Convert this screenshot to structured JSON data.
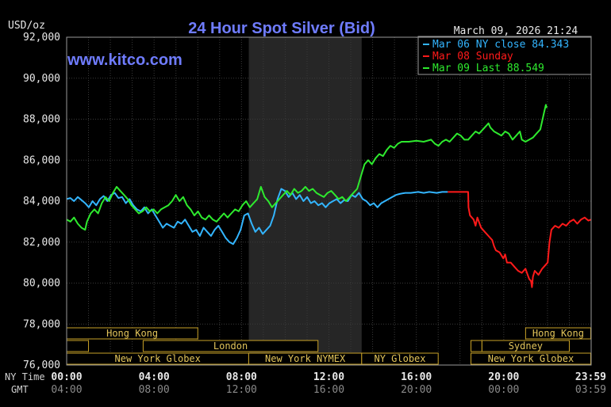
{
  "chart_data": {
    "type": "line",
    "title": "24 Hour Spot Silver (Bid)",
    "watermark": "www.kitco.com",
    "timestamp": "March 09, 2026 21:24",
    "ylabel": "USD/oz",
    "ylim": [
      76000,
      92000
    ],
    "y_ticks": [
      "76,000",
      "78,000",
      "80,000",
      "82,000",
      "84,000",
      "86,000",
      "88,000",
      "90,000",
      "92,000"
    ],
    "x_axes": [
      {
        "label": "NY Time",
        "ticks": [
          "00:00",
          "04:00",
          "08:00",
          "12:00",
          "16:00",
          "20:00",
          "23:59"
        ]
      },
      {
        "label": "GMT",
        "ticks": [
          "04:00",
          "08:00",
          "12:00",
          "16:00",
          "20:00",
          "00:00",
          "03:59"
        ]
      }
    ],
    "shaded_session": {
      "start": "08:20",
      "end": "13:30"
    },
    "legend": [
      {
        "text": "Mar 06 NY close 84.343",
        "color": "#33b5ff"
      },
      {
        "text": "Mar 08 Sunday",
        "color": "#ff1a1a"
      },
      {
        "text": "Mar 09 Last 88.549",
        "color": "#2eea2e"
      }
    ],
    "sessions": [
      {
        "label": "Hong Kong",
        "start": 0.0,
        "end": 6.0,
        "row": 0
      },
      {
        "label": "Hong Kong",
        "start": 21.0,
        "end": 23.98,
        "row": 0
      },
      {
        "label": "",
        "start": 0.0,
        "end": 1.0,
        "row": 1
      },
      {
        "label": "London",
        "start": 3.5,
        "end": 11.5,
        "row": 1
      },
      {
        "label": "Sydney",
        "start": 19.0,
        "end": 23.0,
        "row": 1
      },
      {
        "label": "",
        "start": 18.5,
        "end": 19.0,
        "row": 1
      },
      {
        "label": "New York Globex",
        "start": 0.0,
        "end": 8.33,
        "row": 2
      },
      {
        "label": "New York NYMEX",
        "start": 8.33,
        "end": 13.5,
        "row": 2
      },
      {
        "label": "NY Globex",
        "start": 13.5,
        "end": 17.0,
        "row": 2
      },
      {
        "label": "New York Globex",
        "start": 18.5,
        "end": 23.98,
        "row": 2
      }
    ],
    "series": [
      {
        "color": "#33b5ff",
        "points": [
          [
            0,
            84100
          ],
          [
            0.2,
            84150
          ],
          [
            0.4,
            84000
          ],
          [
            0.6,
            84200
          ],
          [
            0.8,
            84050
          ],
          [
            1,
            83900
          ],
          [
            1.2,
            83700
          ],
          [
            1.4,
            84000
          ],
          [
            1.6,
            83800
          ],
          [
            1.8,
            84100
          ],
          [
            2,
            84250
          ],
          [
            2.2,
            84000
          ],
          [
            2.4,
            84300
          ],
          [
            2.6,
            84400
          ],
          [
            2.8,
            84150
          ],
          [
            3,
            84200
          ],
          [
            3.2,
            83900
          ],
          [
            3.4,
            84100
          ],
          [
            3.6,
            83800
          ],
          [
            3.8,
            83600
          ],
          [
            4,
            83500
          ],
          [
            4.2,
            83700
          ],
          [
            4.4,
            83400
          ],
          [
            4.6,
            83600
          ],
          [
            4.8,
            83300
          ],
          [
            5,
            83000
          ],
          [
            5.2,
            82700
          ],
          [
            5.4,
            82900
          ],
          [
            5.6,
            82800
          ],
          [
            5.8,
            82700
          ],
          [
            6,
            83000
          ],
          [
            6.2,
            82900
          ],
          [
            6.4,
            83100
          ],
          [
            6.6,
            82800
          ],
          [
            6.8,
            82500
          ],
          [
            7,
            82600
          ],
          [
            7.2,
            82300
          ],
          [
            7.4,
            82700
          ],
          [
            7.6,
            82500
          ],
          [
            7.8,
            82300
          ],
          [
            8,
            82600
          ],
          [
            8.2,
            82800
          ],
          [
            8.4,
            82500
          ],
          [
            8.6,
            82200
          ],
          [
            8.8,
            82000
          ],
          [
            9,
            81900
          ],
          [
            9.2,
            82200
          ],
          [
            9.4,
            82600
          ],
          [
            9.6,
            83300
          ],
          [
            9.8,
            83400
          ],
          [
            10,
            82900
          ],
          [
            10.2,
            82500
          ],
          [
            10.4,
            82700
          ],
          [
            10.6,
            82400
          ],
          [
            10.8,
            82600
          ],
          [
            11,
            82800
          ],
          [
            11.2,
            83300
          ],
          [
            11.4,
            84100
          ],
          [
            11.6,
            84600
          ],
          [
            11.8,
            84500
          ],
          [
            12,
            84200
          ],
          [
            12.2,
            84400
          ],
          [
            12.4,
            84100
          ],
          [
            12.6,
            84300
          ],
          [
            12.8,
            84000
          ],
          [
            13,
            84200
          ],
          [
            13.2,
            83900
          ],
          [
            13.4,
            84000
          ],
          [
            13.6,
            83800
          ],
          [
            13.8,
            83900
          ],
          [
            14,
            83700
          ],
          [
            14.2,
            83900
          ],
          [
            14.4,
            84000
          ],
          [
            14.6,
            84100
          ],
          [
            14.8,
            83900
          ],
          [
            15,
            84050
          ],
          [
            15.2,
            84000
          ],
          [
            15.4,
            84300
          ],
          [
            15.6,
            84200
          ],
          [
            15.8,
            84400
          ],
          [
            16,
            84100
          ],
          [
            16.2,
            84000
          ],
          [
            16.4,
            83800
          ],
          [
            16.6,
            83900
          ],
          [
            16.8,
            83700
          ],
          [
            17,
            83900
          ],
          [
            17.2,
            84000
          ],
          [
            17.4,
            84100
          ],
          [
            17.6,
            84200
          ],
          [
            17.8,
            84300
          ],
          [
            18,
            84350
          ],
          [
            18.3,
            84400
          ],
          [
            18.6,
            84400
          ],
          [
            19,
            84450
          ],
          [
            19.3,
            84400
          ],
          [
            19.6,
            84450
          ],
          [
            20,
            84400
          ],
          [
            20.3,
            84450
          ],
          [
            20.6,
            84450
          ]
        ]
      },
      {
        "color": "#ff1a1a",
        "points": [
          [
            20.6,
            84450
          ],
          [
            20.9,
            84450
          ],
          [
            21.2,
            84450
          ],
          [
            21.5,
            84450
          ],
          [
            21.7,
            84450
          ],
          [
            21.72,
            83700
          ],
          [
            21.8,
            83300
          ],
          [
            22,
            83100
          ],
          [
            22.1,
            82800
          ],
          [
            22.2,
            83200
          ],
          [
            22.4,
            82700
          ],
          [
            22.6,
            82500
          ],
          [
            22.8,
            82300
          ],
          [
            23,
            82100
          ],
          [
            23.1,
            81800
          ],
          [
            23.2,
            81600
          ],
          [
            23.4,
            81500
          ],
          [
            23.6,
            81200
          ],
          [
            23.7,
            81400
          ],
          [
            23.8,
            81000
          ],
          [
            24,
            81000
          ],
          [
            24.2,
            80800
          ],
          [
            24.4,
            80600
          ],
          [
            24.6,
            80500
          ],
          [
            24.8,
            80700
          ],
          [
            25,
            80200
          ],
          [
            25.1,
            80100
          ],
          [
            25.15,
            79800
          ],
          [
            25.2,
            80300
          ],
          [
            25.3,
            80600
          ],
          [
            25.5,
            80400
          ],
          [
            25.7,
            80700
          ],
          [
            25.9,
            80900
          ],
          [
            26,
            81000
          ],
          [
            26.1,
            82000
          ],
          [
            26.2,
            82600
          ],
          [
            26.4,
            82800
          ],
          [
            26.6,
            82700
          ],
          [
            26.8,
            82900
          ],
          [
            27,
            82800
          ],
          [
            27.2,
            83000
          ],
          [
            27.4,
            83100
          ],
          [
            27.6,
            82900
          ],
          [
            27.8,
            83100
          ],
          [
            28,
            83200
          ],
          [
            28.2,
            83050
          ],
          [
            28.35,
            83100
          ]
        ]
      },
      {
        "color": "#2eea2e",
        "points": [
          [
            0,
            83100
          ],
          [
            0.2,
            83000
          ],
          [
            0.4,
            83200
          ],
          [
            0.6,
            82900
          ],
          [
            0.8,
            82700
          ],
          [
            1,
            82600
          ],
          [
            1.1,
            83000
          ],
          [
            1.3,
            83400
          ],
          [
            1.5,
            83600
          ],
          [
            1.7,
            83400
          ],
          [
            1.9,
            83900
          ],
          [
            2.1,
            84200
          ],
          [
            2.3,
            84000
          ],
          [
            2.5,
            84400
          ],
          [
            2.7,
            84700
          ],
          [
            2.9,
            84500
          ],
          [
            3.1,
            84300
          ],
          [
            3.3,
            84100
          ],
          [
            3.5,
            83800
          ],
          [
            3.7,
            83600
          ],
          [
            3.9,
            83400
          ],
          [
            4.1,
            83500
          ],
          [
            4.3,
            83700
          ],
          [
            4.5,
            83500
          ],
          [
            4.7,
            83600
          ],
          [
            4.9,
            83400
          ],
          [
            5.1,
            83600
          ],
          [
            5.3,
            83700
          ],
          [
            5.5,
            83800
          ],
          [
            5.7,
            84000
          ],
          [
            5.9,
            84300
          ],
          [
            6.1,
            84000
          ],
          [
            6.3,
            84200
          ],
          [
            6.5,
            83800
          ],
          [
            6.7,
            83600
          ],
          [
            6.9,
            83300
          ],
          [
            7.1,
            83500
          ],
          [
            7.3,
            83200
          ],
          [
            7.5,
            83100
          ],
          [
            7.7,
            83300
          ],
          [
            7.9,
            83100
          ],
          [
            8.1,
            83000
          ],
          [
            8.3,
            83200
          ],
          [
            8.5,
            83400
          ],
          [
            8.7,
            83200
          ],
          [
            8.9,
            83400
          ],
          [
            9.1,
            83600
          ],
          [
            9.3,
            83500
          ],
          [
            9.5,
            83800
          ],
          [
            9.7,
            84000
          ],
          [
            9.9,
            83700
          ],
          [
            10.1,
            83900
          ],
          [
            10.3,
            84100
          ],
          [
            10.5,
            84700
          ],
          [
            10.7,
            84200
          ],
          [
            10.9,
            84000
          ],
          [
            11.1,
            83700
          ],
          [
            11.3,
            83900
          ],
          [
            11.5,
            84100
          ],
          [
            11.7,
            84300
          ],
          [
            11.9,
            84500
          ],
          [
            12.1,
            84300
          ],
          [
            12.3,
            84600
          ],
          [
            12.5,
            84400
          ],
          [
            12.7,
            84500
          ],
          [
            12.9,
            84700
          ],
          [
            13.1,
            84500
          ],
          [
            13.3,
            84600
          ],
          [
            13.5,
            84400
          ],
          [
            13.7,
            84300
          ],
          [
            13.9,
            84200
          ],
          [
            14.1,
            84400
          ],
          [
            14.3,
            84500
          ],
          [
            14.5,
            84300
          ],
          [
            14.7,
            84100
          ],
          [
            14.9,
            84200
          ],
          [
            15.1,
            84000
          ],
          [
            15.3,
            84200
          ],
          [
            15.5,
            84400
          ],
          [
            15.7,
            84600
          ],
          [
            15.9,
            85200
          ],
          [
            16.1,
            85800
          ],
          [
            16.3,
            86000
          ],
          [
            16.5,
            85800
          ],
          [
            16.7,
            86100
          ],
          [
            16.9,
            86300
          ],
          [
            17.1,
            86200
          ],
          [
            17.3,
            86500
          ],
          [
            17.5,
            86700
          ],
          [
            17.7,
            86600
          ],
          [
            17.9,
            86800
          ],
          [
            18.1,
            86900
          ],
          [
            18.5,
            86900
          ],
          [
            18.9,
            86950
          ],
          [
            19.3,
            86900
          ],
          [
            19.7,
            87000
          ],
          [
            19.9,
            86800
          ],
          [
            20.1,
            86700
          ],
          [
            20.3,
            86900
          ],
          [
            20.5,
            87000
          ],
          [
            20.7,
            86900
          ],
          [
            20.9,
            87100
          ],
          [
            21.1,
            87300
          ],
          [
            21.3,
            87200
          ],
          [
            21.5,
            87000
          ],
          [
            21.7,
            87000
          ],
          [
            21.9,
            87200
          ],
          [
            22.1,
            87400
          ],
          [
            22.3,
            87300
          ],
          [
            22.5,
            87500
          ],
          [
            22.7,
            87700
          ],
          [
            22.8,
            87800
          ],
          [
            22.9,
            87600
          ],
          [
            23.1,
            87400
          ],
          [
            23.3,
            87300
          ],
          [
            23.5,
            87200
          ],
          [
            23.7,
            87400
          ],
          [
            23.9,
            87300
          ],
          [
            24.1,
            87000
          ],
          [
            24.3,
            87200
          ],
          [
            24.5,
            87400
          ],
          [
            24.6,
            87000
          ],
          [
            24.8,
            86900
          ],
          [
            25,
            87000
          ],
          [
            25.2,
            87100
          ],
          [
            25.4,
            87300
          ],
          [
            25.6,
            87500
          ],
          [
            25.7,
            87900
          ],
          [
            25.8,
            88300
          ],
          [
            25.9,
            88700
          ],
          [
            25.95,
            88549
          ]
        ]
      }
    ]
  }
}
